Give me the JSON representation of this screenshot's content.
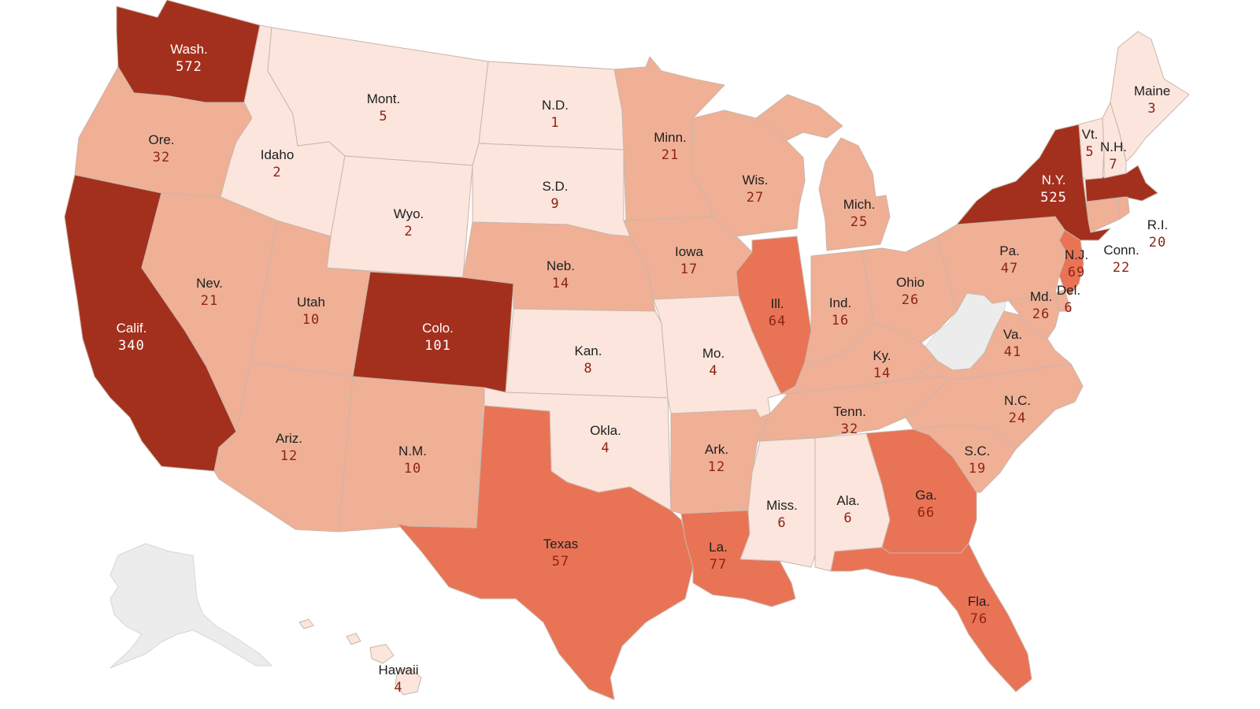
{
  "colors": {
    "level_1": "#fbe5dc",
    "level_2": "#f0b096",
    "level_3": "#e97355",
    "level_4": "#a3301d",
    "no_data": "#ececec"
  },
  "states": {
    "wa": {
      "label": "Wash.",
      "value": "572"
    },
    "or": {
      "label": "Ore.",
      "value": "32"
    },
    "ca": {
      "label": "Calif.",
      "value": "340"
    },
    "id": {
      "label": "Idaho",
      "value": "2"
    },
    "nv": {
      "label": "Nev.",
      "value": "21"
    },
    "mt": {
      "label": "Mont.",
      "value": "5"
    },
    "wy": {
      "label": "Wyo.",
      "value": "2"
    },
    "ut": {
      "label": "Utah",
      "value": "10"
    },
    "az": {
      "label": "Ariz.",
      "value": "12"
    },
    "co": {
      "label": "Colo.",
      "value": "101"
    },
    "nm": {
      "label": "N.M.",
      "value": "10"
    },
    "nd": {
      "label": "N.D.",
      "value": "1"
    },
    "sd": {
      "label": "S.D.",
      "value": "9"
    },
    "ne": {
      "label": "Neb.",
      "value": "14"
    },
    "ks": {
      "label": "Kan.",
      "value": "8"
    },
    "ok": {
      "label": "Okla.",
      "value": "4"
    },
    "tx": {
      "label": "Texas",
      "value": "57"
    },
    "mn": {
      "label": "Minn.",
      "value": "21"
    },
    "ia": {
      "label": "Iowa",
      "value": "17"
    },
    "mo": {
      "label": "Mo.",
      "value": "4"
    },
    "ar": {
      "label": "Ark.",
      "value": "12"
    },
    "la": {
      "label": "La.",
      "value": "77"
    },
    "wi": {
      "label": "Wis.",
      "value": "27"
    },
    "il": {
      "label": "Ill.",
      "value": "64"
    },
    "mi": {
      "label": "Mich.",
      "value": "25"
    },
    "in": {
      "label": "Ind.",
      "value": "16"
    },
    "oh": {
      "label": "Ohio",
      "value": "26"
    },
    "ky": {
      "label": "Ky.",
      "value": "14"
    },
    "tn": {
      "label": "Tenn.",
      "value": "32"
    },
    "ms": {
      "label": "Miss.",
      "value": "6"
    },
    "al": {
      "label": "Ala.",
      "value": "6"
    },
    "ga": {
      "label": "Ga.",
      "value": "66"
    },
    "fl": {
      "label": "Fla.",
      "value": "76"
    },
    "sc": {
      "label": "S.C.",
      "value": "19"
    },
    "nc": {
      "label": "N.C.",
      "value": "24"
    },
    "va": {
      "label": "Va.",
      "value": "41"
    },
    "md": {
      "label": "Md.",
      "value": "26"
    },
    "de": {
      "label": "Del.",
      "value": "6"
    },
    "nj": {
      "label": "N.J.",
      "value": "69"
    },
    "pa": {
      "label": "Pa.",
      "value": "47"
    },
    "ny": {
      "label": "N.Y.",
      "value": "525"
    },
    "ct": {
      "label": "Conn.",
      "value": "22"
    },
    "ri": {
      "label": "R.I.",
      "value": "20"
    },
    "vt": {
      "label": "Vt.",
      "value": "5"
    },
    "nh": {
      "label": "N.H.",
      "value": "7"
    },
    "me": {
      "label": "Maine",
      "value": "3"
    },
    "hi": {
      "label": "Hawaii",
      "value": "4"
    }
  }
}
